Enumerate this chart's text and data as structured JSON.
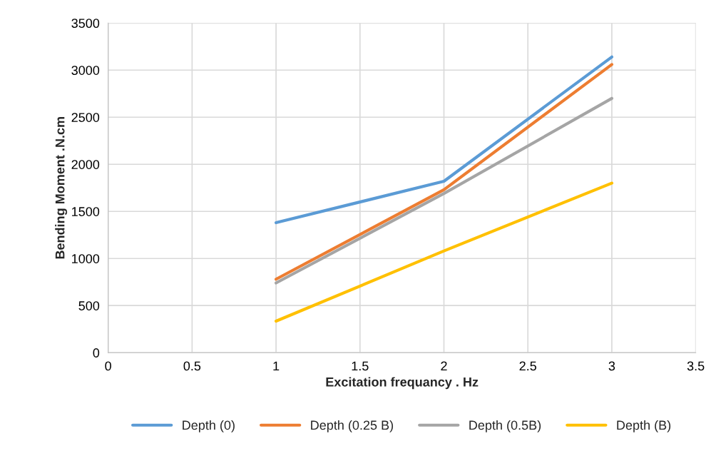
{
  "chart_data": {
    "type": "line",
    "xlabel": "Excitation frequancy . Hz",
    "ylabel": "Bending Moment .N.cm",
    "x": [
      1,
      2,
      3
    ],
    "series": [
      {
        "name": "Depth (0)",
        "color": "#5b9bd5",
        "values": [
          1380,
          1820,
          3140
        ]
      },
      {
        "name": "Depth (0.25 B)",
        "color": "#ed7d31",
        "values": [
          780,
          1730,
          3060
        ]
      },
      {
        "name": "Depth (0.5B)",
        "color": "#a5a5a5",
        "values": [
          740,
          1690,
          2700
        ]
      },
      {
        "name": "Depth (B)",
        "color": "#ffc000",
        "values": [
          335,
          1080,
          1800
        ]
      }
    ],
    "xlim": [
      0,
      3.5
    ],
    "xticks": [
      0,
      0.5,
      1,
      1.5,
      2,
      2.5,
      3,
      3.5
    ],
    "ylim": [
      0,
      3500
    ],
    "yticks": [
      0,
      500,
      1000,
      1500,
      2000,
      2500,
      3000,
      3500
    ],
    "grid": true,
    "legend": "bottom",
    "marker": "none",
    "line_style": "solid"
  }
}
